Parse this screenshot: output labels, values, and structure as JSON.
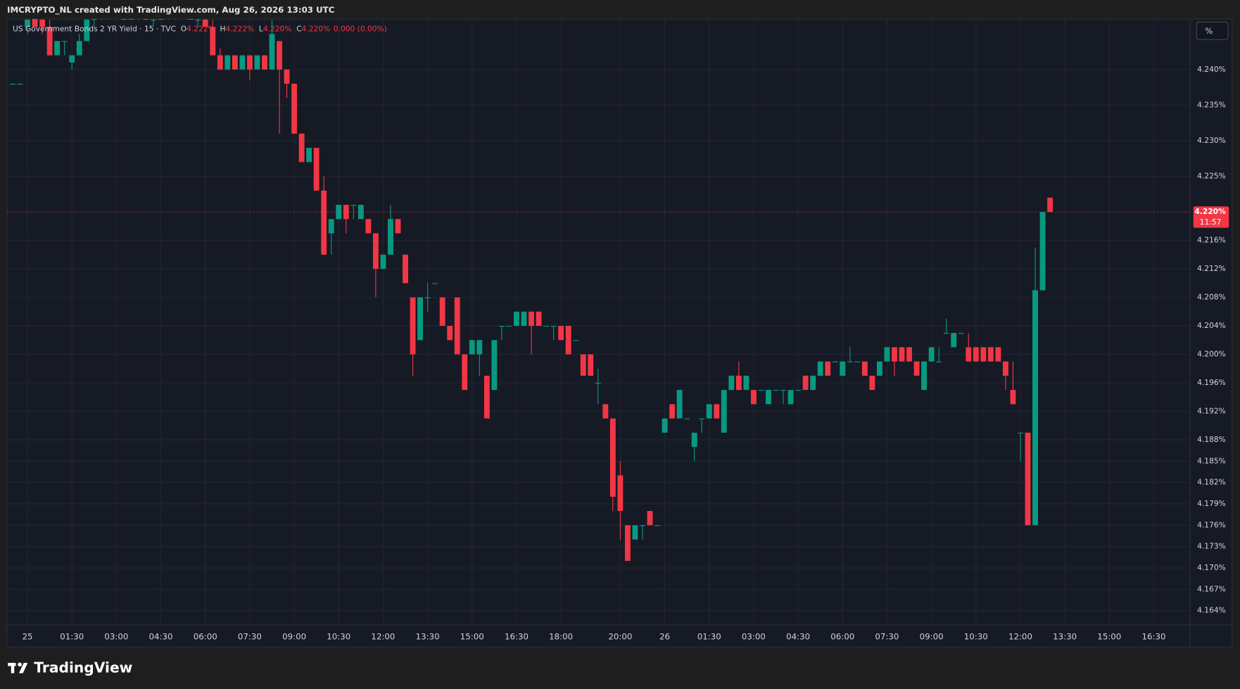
{
  "header": "IMCRYPTO_NL created with TradingView.com, Aug 26, 2026 13:03 UTC",
  "toolbar": {
    "scale_button": "%"
  },
  "footer": {
    "brand": "TradingView"
  },
  "chart_data": {
    "type": "candlestick",
    "title": "US Government Bonds 2 YR Yield · 15 · TVC",
    "ohlc_legend": [
      {
        "label": "O",
        "text": "4.222%"
      },
      {
        "label": "H",
        "text": "4.222%"
      },
      {
        "label": "L",
        "text": "4.220%"
      },
      {
        "label": "C",
        "text": "4.220%"
      }
    ],
    "change": "0.000 (0.00%)",
    "categories": [
      null,
      null,
      "25",
      null,
      null,
      null,
      null,
      null,
      "01:30",
      null,
      null,
      null,
      null,
      null,
      "03:00",
      null,
      null,
      null,
      null,
      null,
      "04:30",
      null,
      null,
      null,
      null,
      null,
      "06:00",
      null,
      null,
      null,
      null,
      null,
      "07:30",
      null,
      null,
      null,
      null,
      null,
      "09:00",
      null,
      null,
      null,
      null,
      null,
      "10:30",
      null,
      null,
      null,
      null,
      null,
      "12:00",
      null,
      null,
      null,
      null,
      null,
      "13:30",
      null,
      null,
      null,
      null,
      null,
      "15:00",
      null,
      null,
      null,
      null,
      null,
      "16:30",
      null,
      null,
      null,
      null,
      null,
      "18:00",
      null,
      null,
      null,
      null,
      null,
      null,
      null,
      "20:00",
      null,
      null,
      null,
      null,
      null,
      "26",
      null,
      null,
      null,
      null,
      null,
      "01:30",
      null,
      null,
      null,
      null,
      null,
      "03:00",
      null,
      null,
      null,
      null,
      null,
      "04:30",
      null,
      null,
      null,
      null,
      null,
      "06:00",
      null,
      null,
      null,
      null,
      null,
      "07:30",
      null,
      null,
      null,
      null,
      null,
      "09:00",
      null,
      null,
      null,
      null,
      null,
      "10:30",
      null,
      null,
      null,
      null,
      null,
      "12:00",
      null,
      null,
      null,
      null,
      null,
      "13:30",
      null,
      null,
      null,
      null,
      null,
      "15:00",
      null,
      null,
      null,
      null,
      null,
      "16:30"
    ],
    "open": [
      4.238,
      4.238,
      4.246,
      4.248,
      4.247,
      4.246,
      4.242,
      4.244,
      4.241,
      4.242,
      4.244,
      4.247,
      4.248,
      4.248,
      4.249,
      4.248,
      4.247,
      4.248,
      4.248,
      4.247,
      4.247,
      4.248,
      4.248,
      4.249,
      4.248,
      4.247,
      4.247,
      4.246,
      4.242,
      4.24,
      4.242,
      4.24,
      4.242,
      4.24,
      4.242,
      4.24,
      4.244,
      4.24,
      4.238,
      4.231,
      4.227,
      4.229,
      4.223,
      4.217,
      4.219,
      4.221,
      4.221,
      4.219,
      4.219,
      4.217,
      4.212,
      4.214,
      4.219,
      4.214,
      4.208,
      4.202,
      4.208,
      4.21,
      4.208,
      4.204,
      4.208,
      4.2,
      4.2,
      4.2,
      4.197,
      4.195,
      4.204,
      4.204,
      4.204,
      4.204,
      4.206,
      4.206,
      4.204,
      4.204,
      4.204,
      4.204,
      4.202,
      4.2,
      4.2,
      4.196,
      4.193,
      4.191,
      4.183,
      4.176,
      4.174,
      4.176,
      4.178,
      4.176,
      4.189,
      4.193,
      4.191,
      4.191,
      4.187,
      4.191,
      4.191,
      4.193,
      4.189,
      4.195,
      4.197,
      4.195,
      4.195,
      4.195,
      4.193,
      4.195,
      4.195,
      4.193,
      4.195,
      4.197,
      4.195,
      4.197,
      4.199,
      4.199,
      4.197,
      4.199,
      4.199,
      4.199,
      4.197,
      4.197,
      4.199,
      4.201,
      4.201,
      4.201,
      4.199,
      4.195,
      4.199,
      4.199,
      4.203,
      4.201,
      4.203,
      4.201,
      4.201,
      4.201,
      4.201,
      4.201,
      4.199,
      4.195,
      4.189,
      4.189,
      4.176,
      4.209,
      4.222,
      null,
      null,
      null,
      null,
      null,
      null,
      null,
      null,
      null,
      null,
      null,
      null,
      null,
      null
    ],
    "high": [
      4.238,
      4.238,
      4.248,
      4.249,
      4.248,
      4.247,
      4.244,
      4.244,
      4.242,
      4.245,
      4.248,
      4.249,
      4.249,
      4.25,
      4.25,
      4.249,
      4.249,
      4.249,
      4.249,
      4.248,
      4.249,
      4.249,
      4.249,
      4.25,
      4.249,
      4.248,
      4.248,
      4.247,
      4.243,
      4.242,
      4.242,
      4.242,
      4.242,
      4.242,
      4.242,
      4.247,
      4.244,
      4.24,
      4.238,
      4.231,
      4.229,
      4.229,
      4.225,
      4.219,
      4.221,
      4.221,
      4.221,
      4.221,
      4.219,
      4.217,
      4.214,
      4.221,
      4.219,
      4.214,
      4.208,
      4.208,
      4.21,
      4.21,
      4.208,
      4.204,
      4.208,
      4.2,
      4.202,
      4.202,
      4.197,
      4.202,
      4.204,
      4.204,
      4.206,
      4.206,
      4.206,
      4.206,
      4.204,
      4.204,
      4.204,
      4.204,
      4.202,
      4.2,
      4.2,
      4.198,
      4.193,
      4.191,
      4.185,
      4.176,
      4.176,
      4.176,
      4.178,
      4.176,
      4.191,
      4.193,
      4.195,
      4.191,
      4.189,
      4.191,
      4.193,
      4.193,
      4.195,
      4.197,
      4.199,
      4.197,
      4.195,
      4.195,
      4.195,
      4.195,
      4.195,
      4.195,
      4.195,
      4.197,
      4.197,
      4.199,
      4.199,
      4.199,
      4.199,
      4.201,
      4.199,
      4.199,
      4.197,
      4.199,
      4.201,
      4.201,
      4.201,
      4.201,
      4.199,
      4.199,
      4.201,
      4.201,
      4.205,
      4.203,
      4.203,
      4.203,
      4.201,
      4.201,
      4.201,
      4.201,
      4.199,
      4.199,
      4.189,
      4.189,
      4.215,
      4.22,
      4.222,
      null,
      null,
      null,
      null,
      null,
      null,
      null,
      null,
      null,
      null,
      null,
      null,
      null,
      null
    ],
    "low": [
      4.238,
      4.238,
      4.245,
      4.246,
      4.245,
      4.242,
      4.242,
      4.242,
      4.24,
      4.242,
      4.244,
      4.246,
      4.247,
      4.247,
      4.248,
      4.247,
      4.247,
      4.247,
      4.247,
      4.246,
      4.247,
      4.247,
      4.247,
      4.248,
      4.247,
      4.246,
      4.246,
      4.242,
      4.24,
      4.24,
      4.24,
      4.24,
      4.2385,
      4.24,
      4.24,
      4.24,
      4.231,
      4.236,
      4.231,
      4.227,
      4.227,
      4.223,
      4.214,
      4.214,
      4.219,
      4.217,
      4.219,
      4.219,
      4.217,
      4.208,
      4.212,
      4.214,
      4.217,
      4.21,
      4.197,
      4.202,
      4.206,
      4.21,
      4.204,
      4.202,
      4.2,
      4.195,
      4.2,
      4.197,
      4.191,
      4.195,
      4.202,
      4.204,
      4.204,
      4.204,
      4.2,
      4.204,
      4.204,
      4.202,
      4.202,
      4.2,
      4.202,
      4.197,
      4.197,
      4.193,
      4.191,
      4.178,
      4.174,
      4.171,
      4.174,
      4.174,
      4.176,
      4.176,
      4.189,
      4.191,
      4.191,
      4.191,
      4.185,
      4.189,
      4.191,
      4.191,
      4.189,
      4.195,
      4.195,
      4.195,
      4.193,
      4.195,
      4.193,
      4.195,
      4.193,
      4.193,
      4.195,
      4.195,
      4.195,
      4.197,
      4.197,
      4.199,
      4.197,
      4.199,
      4.199,
      4.197,
      4.195,
      4.197,
      4.199,
      4.197,
      4.199,
      4.199,
      4.197,
      4.195,
      4.199,
      4.199,
      4.203,
      4.201,
      4.203,
      4.199,
      4.199,
      4.199,
      4.199,
      4.199,
      4.195,
      4.193,
      4.185,
      4.176,
      4.176,
      4.209,
      4.22,
      null,
      null,
      null,
      null,
      null,
      null,
      null,
      null,
      null,
      null,
      null,
      null,
      null,
      null
    ],
    "close": [
      4.238,
      4.238,
      4.247,
      4.246,
      4.246,
      4.242,
      4.244,
      4.244,
      4.242,
      4.244,
      4.247,
      4.248,
      4.248,
      4.249,
      4.248,
      4.247,
      4.248,
      4.248,
      4.247,
      4.247,
      4.248,
      4.248,
      4.249,
      4.248,
      4.247,
      4.247,
      4.246,
      4.242,
      4.24,
      4.242,
      4.24,
      4.242,
      4.24,
      4.242,
      4.24,
      4.245,
      4.24,
      4.238,
      4.231,
      4.227,
      4.229,
      4.223,
      4.214,
      4.219,
      4.221,
      4.219,
      4.221,
      4.221,
      4.217,
      4.212,
      4.214,
      4.219,
      4.217,
      4.21,
      4.2,
      4.208,
      4.208,
      4.21,
      4.204,
      4.202,
      4.2,
      4.195,
      4.202,
      4.202,
      4.191,
      4.202,
      4.204,
      4.204,
      4.206,
      4.206,
      4.204,
      4.204,
      4.204,
      4.204,
      4.202,
      4.2,
      4.202,
      4.197,
      4.197,
      4.196,
      4.191,
      4.18,
      4.178,
      4.171,
      4.176,
      4.176,
      4.176,
      4.176,
      4.191,
      4.191,
      4.195,
      4.191,
      4.189,
      4.191,
      4.193,
      4.191,
      4.195,
      4.197,
      4.195,
      4.197,
      4.193,
      4.195,
      4.195,
      4.195,
      4.195,
      4.195,
      4.195,
      4.195,
      4.197,
      4.199,
      4.197,
      4.199,
      4.199,
      4.199,
      4.199,
      4.197,
      4.195,
      4.199,
      4.201,
      4.199,
      4.199,
      4.199,
      4.197,
      4.199,
      4.201,
      4.199,
      4.203,
      4.203,
      4.203,
      4.199,
      4.199,
      4.199,
      4.199,
      4.199,
      4.197,
      4.193,
      4.189,
      4.176,
      4.209,
      4.22,
      4.22,
      null,
      null,
      null,
      null,
      null,
      null,
      null,
      null,
      null,
      null,
      null,
      null,
      null,
      null
    ],
    "up_color": "#089981",
    "down_color": "#f23645",
    "ylim": [
      4.162,
      4.2471
    ],
    "yticks": [
      {
        "value": 4.164,
        "label": "4.164%"
      },
      {
        "value": 4.167,
        "label": "4.167%"
      },
      {
        "value": 4.17,
        "label": "4.170%"
      },
      {
        "value": 4.173,
        "label": "4.173%"
      },
      {
        "value": 4.176,
        "label": "4.176%"
      },
      {
        "value": 4.179,
        "label": "4.179%"
      },
      {
        "value": 4.182,
        "label": "4.182%"
      },
      {
        "value": 4.185,
        "label": "4.185%"
      },
      {
        "value": 4.188,
        "label": "4.188%"
      },
      {
        "value": 4.192,
        "label": "4.192%"
      },
      {
        "value": 4.196,
        "label": "4.196%"
      },
      {
        "value": 4.2,
        "label": "4.200%"
      },
      {
        "value": 4.204,
        "label": "4.204%"
      },
      {
        "value": 4.208,
        "label": "4.208%"
      },
      {
        "value": 4.212,
        "label": "4.212%"
      },
      {
        "value": 4.216,
        "label": "4.216%"
      },
      {
        "value": 4.225,
        "label": "4.225%"
      },
      {
        "value": 4.23,
        "label": "4.230%"
      },
      {
        "value": 4.235,
        "label": "4.235%"
      },
      {
        "value": 4.24,
        "label": "4.240%"
      }
    ],
    "grid": true,
    "last_price": {
      "value": 4.22,
      "label": "4.220%",
      "countdown": "11:57"
    }
  }
}
